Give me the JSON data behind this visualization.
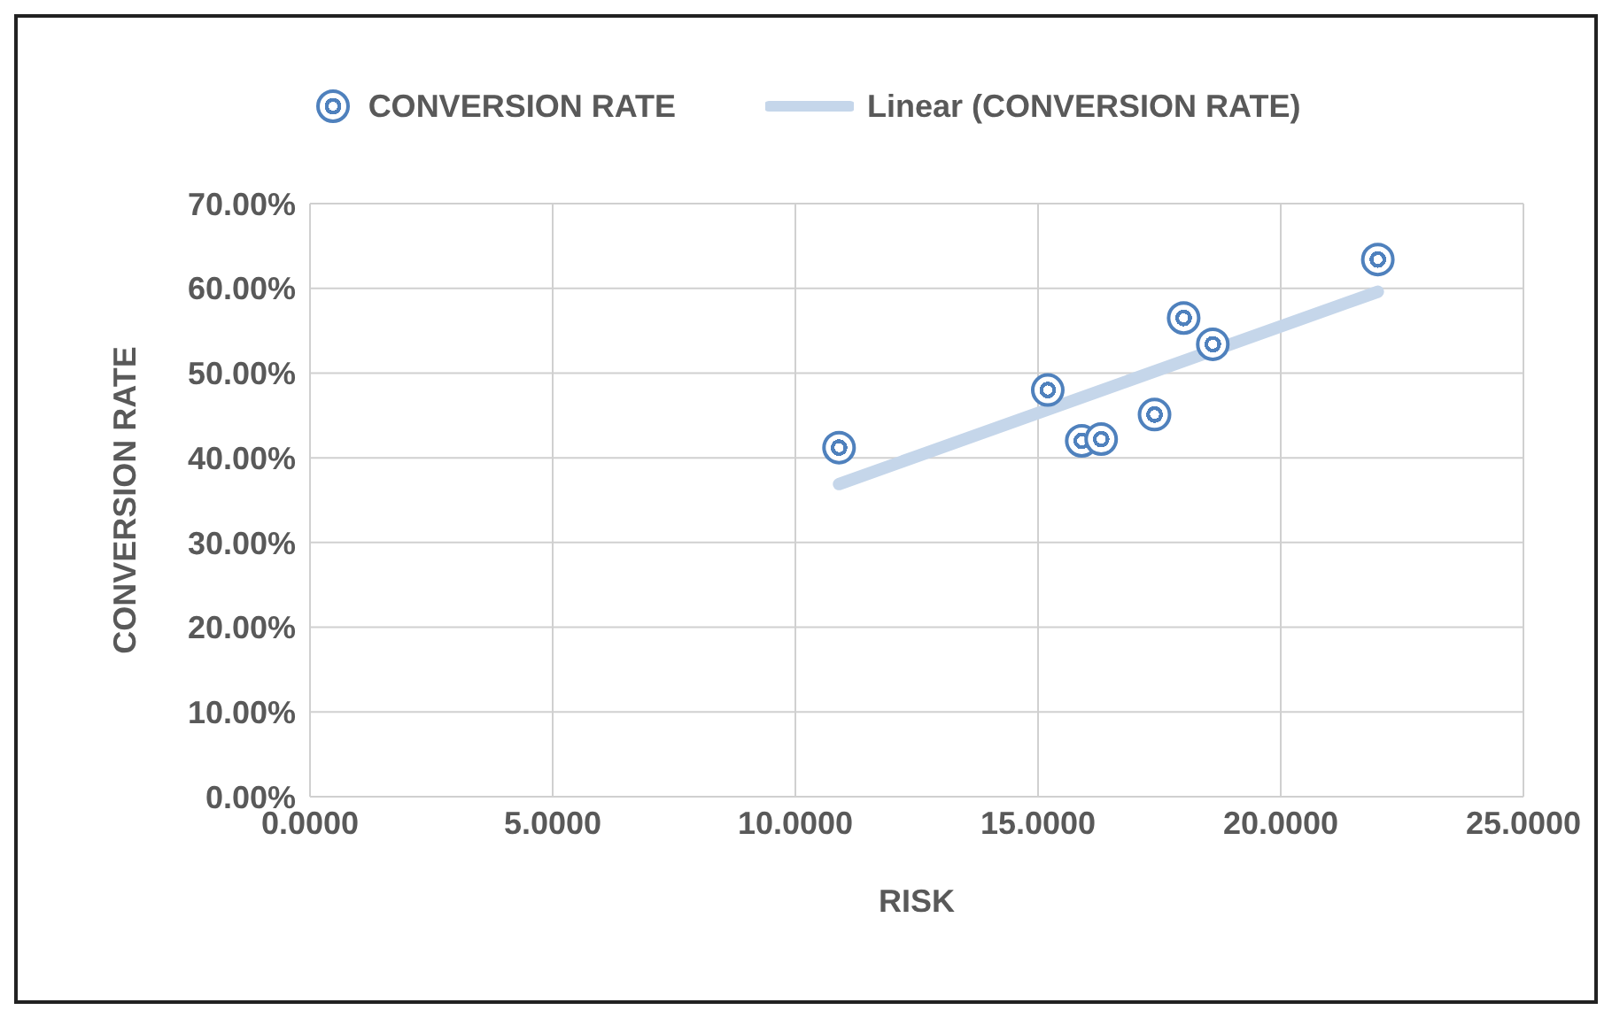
{
  "chart_data": {
    "type": "scatter",
    "xlabel": "RISK",
    "ylabel": "CONVERSION RATE",
    "marker": "circle",
    "grid": true,
    "legend": "top",
    "xlim": [
      0,
      25
    ],
    "xticks": [
      {
        "value": 0,
        "label": "0.0000"
      },
      {
        "value": 5,
        "label": "5.0000"
      },
      {
        "value": 10,
        "label": "10.0000"
      },
      {
        "value": 15,
        "label": "15.0000"
      },
      {
        "value": 20,
        "label": "20.0000"
      },
      {
        "value": 25,
        "label": "25.0000"
      }
    ],
    "ylim": [
      0,
      70
    ],
    "yticks": [
      {
        "value": 0,
        "label": "0.00%"
      },
      {
        "value": 10,
        "label": "10.00%"
      },
      {
        "value": 20,
        "label": "20.00%"
      },
      {
        "value": 30,
        "label": "30.00%"
      },
      {
        "value": 40,
        "label": "40.00%"
      },
      {
        "value": 50,
        "label": "50.00%"
      },
      {
        "value": 60,
        "label": "60.00%"
      },
      {
        "value": 70,
        "label": "70.00%"
      }
    ],
    "series": [
      {
        "name": "CONVERSION RATE",
        "color": "#4f81bd",
        "x": [
          10.9,
          15.2,
          15.9,
          16.3,
          17.4,
          18.0,
          18.6,
          22.0
        ],
        "values": [
          41.2,
          48.0,
          42.0,
          42.2,
          45.1,
          56.5,
          53.4,
          63.4
        ]
      },
      {
        "name": "Linear  (CONVERSION RATE)",
        "type": "line",
        "marker": "none",
        "color": "#c5d6ea",
        "x": [
          10.9,
          22.0
        ],
        "values": [
          36.9,
          59.6
        ]
      }
    ]
  }
}
